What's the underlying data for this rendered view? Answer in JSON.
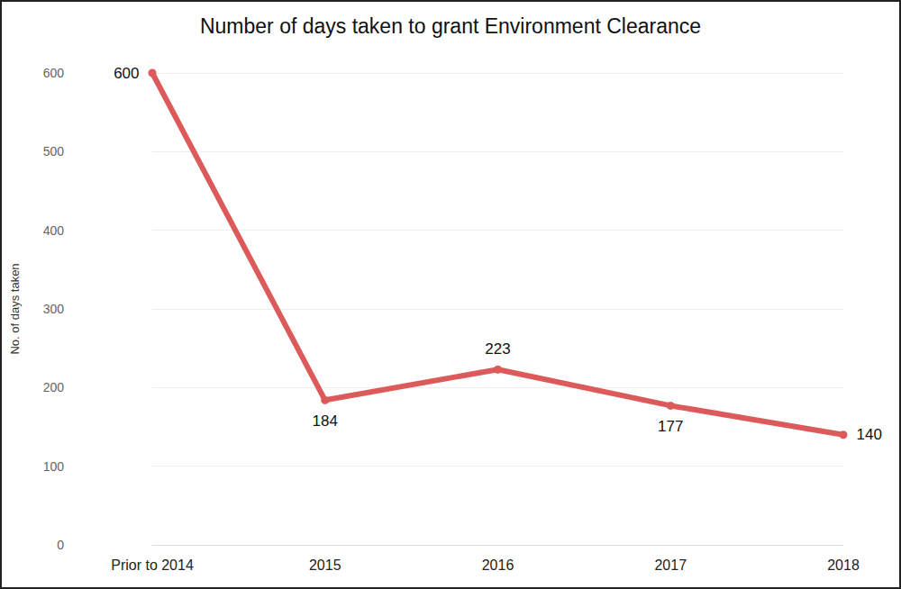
{
  "chart_data": {
    "type": "line",
    "title": "Number of days taken to grant Environment Clearance",
    "y_label": "No. of days taken",
    "categories": [
      "Prior to 2014",
      "2015",
      "2016",
      "2017",
      "2018"
    ],
    "values": [
      600,
      184,
      223,
      177,
      140
    ],
    "color": "#dc5a5a",
    "ylim": [
      0,
      600
    ],
    "yticks": [
      0,
      100,
      200,
      300,
      400,
      500,
      600
    ],
    "grid": true,
    "data_labels": true,
    "marker": "circle"
  }
}
